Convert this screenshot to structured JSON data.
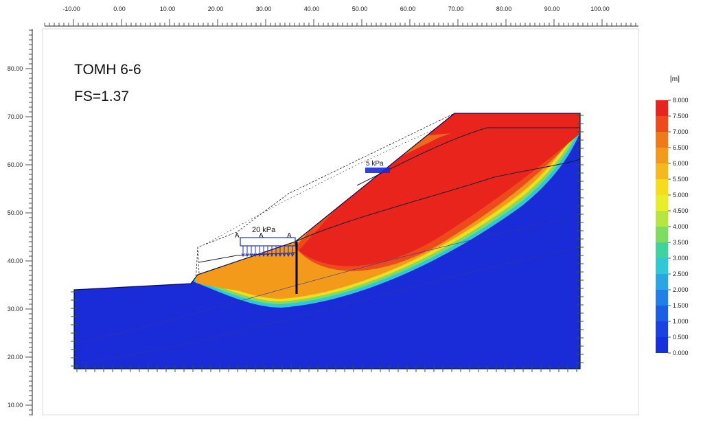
{
  "model": {
    "title": "TOMH 6-6",
    "fs_label": "FS=1.37"
  },
  "rulers": {
    "top_labels": [
      "-10.00",
      "0.00",
      "10.00",
      "20.00",
      "30.00",
      "40.00",
      "50.00",
      "60.00",
      "70.00",
      "80.00",
      "90.00",
      "100.00"
    ],
    "left_labels": [
      "80.00",
      "70.00",
      "60.00",
      "50.00",
      "40.00",
      "30.00",
      "20.00",
      "10.00"
    ]
  },
  "loads": {
    "distributed_label": "20 kPa",
    "surface_label": "5 kPa",
    "marker_label": "A"
  },
  "legend": {
    "unit": "[m]",
    "entries": [
      {
        "label": "8.000",
        "color": "#e8241c"
      },
      {
        "label": "7.500",
        "color": "#ee4a1c"
      },
      {
        "label": "7.000",
        "color": "#f07a1a"
      },
      {
        "label": "6.500",
        "color": "#f39a1a"
      },
      {
        "label": "6.000",
        "color": "#f6b81a"
      },
      {
        "label": "5.500",
        "color": "#f7dc1c"
      },
      {
        "label": "5.000",
        "color": "#e8ef2a"
      },
      {
        "label": "4.500",
        "color": "#b8e640"
      },
      {
        "label": "4.000",
        "color": "#7edc60"
      },
      {
        "label": "3.500",
        "color": "#3fd49e"
      },
      {
        "label": "3.000",
        "color": "#2ec8d6"
      },
      {
        "label": "2.500",
        "color": "#28a6e6"
      },
      {
        "label": "2.000",
        "color": "#2080ea"
      },
      {
        "label": "1.500",
        "color": "#1a5ee8"
      },
      {
        "label": "1.000",
        "color": "#1842e4"
      },
      {
        "label": "0.500",
        "color": "#1630e0"
      },
      {
        "label": "0.000",
        "color": "#1420dc"
      }
    ]
  },
  "colors": {
    "soil_base": "#1a2bd8",
    "band_red": "#e82a1e",
    "band_orange": "#f0901a",
    "ruler": "#222222"
  }
}
